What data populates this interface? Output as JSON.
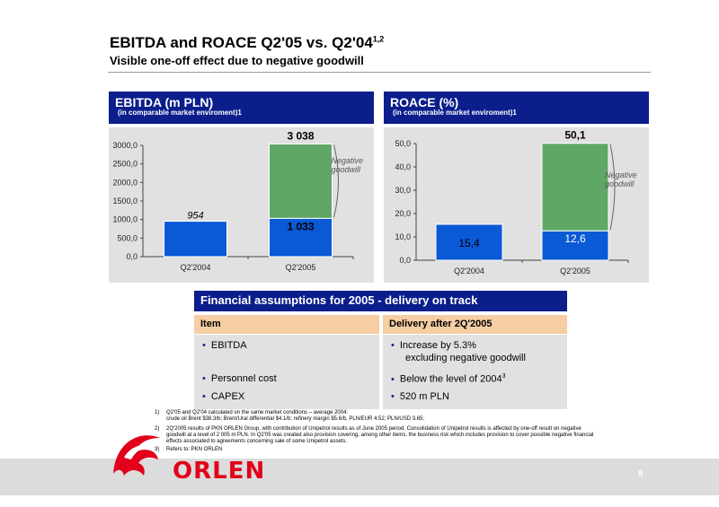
{
  "header": {
    "title": "EBITDA and ROACE Q2'05 vs. Q2'04",
    "title_sup": "1,2",
    "subtitle": "Visible one-off effect due to negative goodwill"
  },
  "ebitda_panel": {
    "heading": "EBITDA (m PLN)",
    "subheading": "(in comparable market enviroment)1"
  },
  "roace_panel": {
    "heading": "ROACE (%)",
    "subheading": "(in comparable market enviroment)1"
  },
  "chart_data": [
    {
      "type": "bar",
      "title": "EBITDA (m PLN)",
      "categories": [
        "Q2'2004",
        "Q2'2005"
      ],
      "series": [
        {
          "values": [
            954,
            1033
          ],
          "color": "#0a59d6"
        },
        {
          "values": [
            0,
            2005
          ],
          "color": "#5fa765"
        }
      ],
      "totals": [
        null,
        "3 038"
      ],
      "bar_labels": [
        "954",
        "1 033"
      ],
      "ylim": [
        0,
        3000
      ],
      "yticks": [
        "0,0",
        "500,0",
        "1000,0",
        "1500,0",
        "2000,0",
        "2500,0",
        "3000,0"
      ],
      "annotation": [
        "Negative",
        "goodwill"
      ],
      "grid": false
    },
    {
      "type": "bar",
      "title": "ROACE (%)",
      "categories": [
        "Q2'2004",
        "Q2'2005"
      ],
      "series": [
        {
          "values": [
            15.4,
            12.6
          ],
          "color": "#0a59d6"
        },
        {
          "values": [
            0,
            37.5
          ],
          "color": "#5fa765"
        }
      ],
      "totals": [
        null,
        "50,1"
      ],
      "bar_labels": [
        "15,4",
        "12,6"
      ],
      "ylim": [
        0,
        50
      ],
      "yticks": [
        "0,0",
        "10,0",
        "20,0",
        "30,0",
        "40,0",
        "50,0"
      ],
      "annotation": [
        "Negative",
        "goodwill"
      ],
      "grid": false
    }
  ],
  "financial": {
    "heading": "Financial assumptions for 2005  - delivery on track",
    "col1_header": "Item",
    "col2_header": "Delivery after 2Q'2005",
    "items": [
      "EBITDA",
      "Personnel cost",
      "CAPEX"
    ],
    "delivery": [
      "Increase by 5.3%",
      "excluding negative goodwill",
      "Below the level of 2004",
      "3",
      "520 m PLN"
    ],
    "bullet": "•"
  },
  "notes": [
    {
      "n": "1)",
      "lines": [
        "Q2'05 and Q2'04 calculated on the same market conditions – average 2004:",
        "crude oil Brent $38.3/b; Brent/Ural differential $4.1/b; refinery margin $5.6/b, PLN/EUR 4.52; PLN/USD 3.65;"
      ]
    },
    {
      "n": "2)",
      "lines": [
        "2Q'2005 results of PKN ORLEN Group, with contribution of Unipetrol results as of June 2005 period. Consolidation of Unipetrol results is affected by one-off result on negative",
        "goodwill at a level of 2 005 m PLN. In Q2'05 was created also provision covering, among other items, the business risk which includes provision to cover possible negative financial",
        "effects associated to agreements concerning sale of some Unipetrol assets."
      ]
    },
    {
      "n": "3)",
      "lines": [
        "Refers to: PKN ORLEN"
      ]
    }
  ],
  "footer": {
    "logo": "ORLEN",
    "page": "8"
  }
}
